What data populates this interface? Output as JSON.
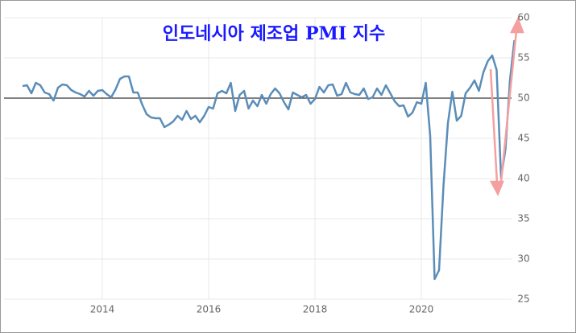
{
  "chart_data": {
    "type": "line",
    "title": "인도네시아 제조업 PMI 지수",
    "categories": [
      null,
      null,
      null,
      null,
      null,
      null,
      null,
      null,
      null,
      null,
      null,
      null,
      null,
      null,
      null,
      null,
      null,
      null,
      "2014",
      null,
      null,
      null,
      null,
      null,
      null,
      null,
      null,
      null,
      null,
      null,
      null,
      null,
      null,
      null,
      null,
      null,
      null,
      null,
      null,
      null,
      null,
      null,
      "2016",
      null,
      null,
      null,
      null,
      null,
      null,
      null,
      null,
      null,
      null,
      null,
      null,
      null,
      null,
      null,
      null,
      null,
      null,
      null,
      null,
      null,
      null,
      null,
      "2018",
      null,
      null,
      null,
      null,
      null,
      null,
      null,
      null,
      null,
      null,
      null,
      null,
      null,
      null,
      null,
      null,
      null,
      null,
      null,
      null,
      null,
      null,
      null,
      "2020",
      null,
      null,
      null,
      null,
      null,
      null,
      null,
      null,
      null,
      null,
      null,
      null,
      null,
      null,
      null,
      null,
      null,
      null,
      null,
      null,
      null
    ],
    "series": [
      {
        "color": "#5b8db8",
        "values": [
          51.5,
          51.6,
          50.6,
          51.9,
          51.6,
          50.7,
          50.5,
          49.7,
          51.3,
          51.7,
          51.6,
          51.0,
          50.7,
          50.5,
          50.2,
          50.9,
          50.3,
          50.9,
          51.0,
          50.5,
          50.1,
          51.1,
          52.4,
          52.7,
          52.7,
          50.7,
          50.7,
          49.2,
          48.0,
          47.6,
          47.5,
          47.5,
          46.4,
          46.7,
          47.1,
          47.8,
          47.3,
          48.4,
          47.4,
          47.8,
          47.0,
          47.8,
          48.9,
          48.7,
          50.6,
          50.9,
          50.6,
          51.9,
          48.4,
          50.4,
          50.9,
          48.7,
          49.7,
          49.0,
          50.4,
          49.3,
          50.5,
          51.2,
          50.6,
          49.5,
          48.6,
          50.7,
          50.4,
          50.1,
          50.4,
          49.3,
          49.9,
          51.4,
          50.7,
          51.6,
          51.7,
          50.3,
          50.5,
          51.9,
          50.7,
          50.5,
          50.4,
          51.2,
          49.9,
          50.1,
          51.2,
          50.4,
          51.6,
          50.6,
          49.6,
          49.0,
          49.1,
          47.7,
          48.2,
          49.5,
          49.3,
          51.9,
          45.3,
          27.5,
          28.6,
          39.1,
          46.9,
          50.8,
          47.2,
          47.8,
          50.6,
          51.3,
          52.2,
          50.9,
          53.2,
          54.6,
          55.3,
          53.5,
          40.1,
          43.7,
          52.2,
          57.2
        ]
      }
    ],
    "ylim": [
      25,
      60
    ],
    "yticks": [
      25,
      30,
      35,
      40,
      45,
      50,
      55,
      60
    ],
    "reference_line": 50,
    "grid": true
  }
}
